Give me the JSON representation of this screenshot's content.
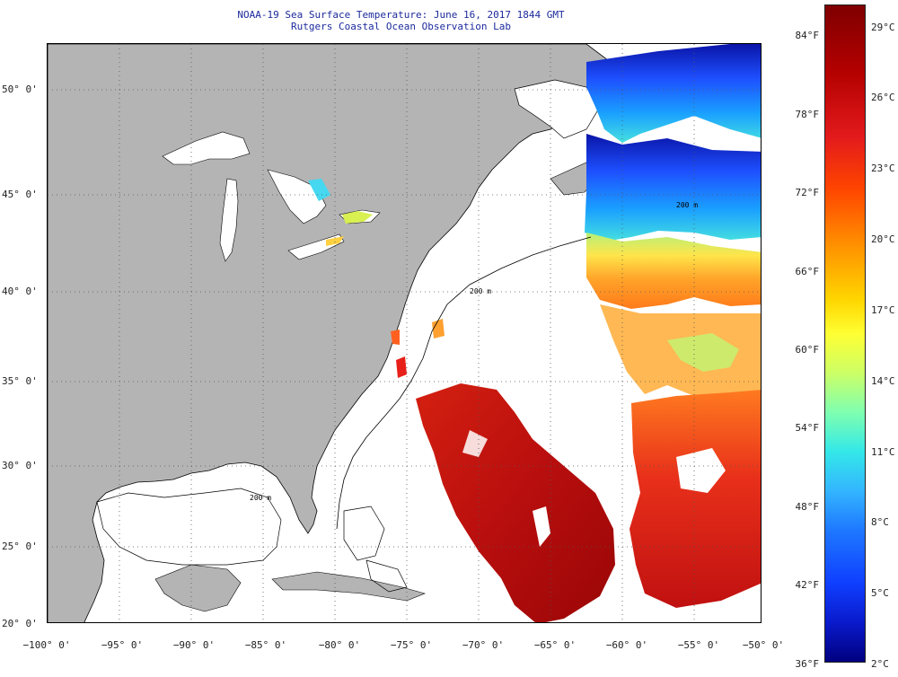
{
  "title": {
    "line1": "NOAA-19 Sea Surface Temperature:  June 16, 2017 1844 GMT",
    "line2": "Rutgers Coastal Ocean Observation Lab"
  },
  "map": {
    "lat_labels": [
      "50° 0'",
      "45° 0'",
      "40° 0'",
      "35° 0'",
      "30° 0'",
      "25° 0'",
      "20° 0'"
    ],
    "lon_labels": [
      "−100° 0'",
      "−95° 0'",
      "−90° 0'",
      "−85° 0'",
      "−80° 0'",
      "−75° 0'",
      "−70° 0'",
      "−65° 0'",
      "−60° 0'",
      "−55° 0'",
      "−50° 0'"
    ],
    "isobath_labels": [
      "200 m",
      "200 m",
      "200 m"
    ],
    "land_color": "#b4b4b4",
    "ocean_no_data_color": "#ffffff",
    "gridlines": "dotted"
  },
  "colorbar": {
    "fahrenheit_labels": [
      "84°F",
      "78°F",
      "72°F",
      "66°F",
      "60°F",
      "54°F",
      "48°F",
      "42°F",
      "36°F"
    ],
    "celsius_labels": [
      "29°C",
      "26°C",
      "23°C",
      "20°C",
      "17°C",
      "14°C",
      "11°C",
      "8°C",
      "5°C",
      "2°C"
    ],
    "colormap": "jet",
    "range_celsius": [
      2,
      30
    ]
  }
}
